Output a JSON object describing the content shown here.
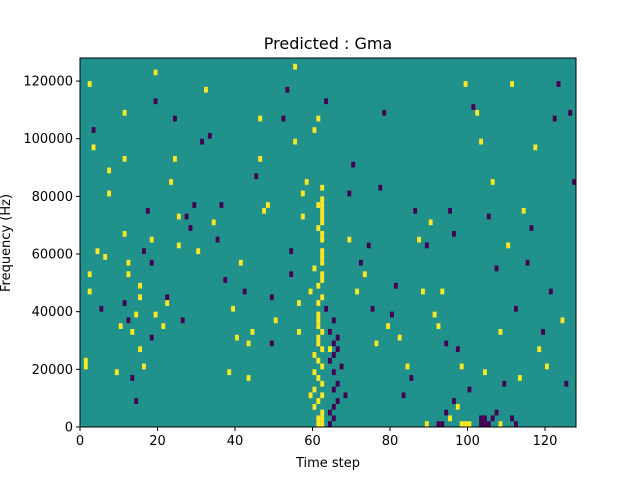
{
  "chart_data": {
    "type": "heatmap",
    "title": "Predicted : Gma",
    "xlabel": "Time step",
    "ylabel": "Frequency (Hz)",
    "xlim": [
      0,
      128
    ],
    "ylim": [
      0,
      128000
    ],
    "x_ticks": [
      0,
      20,
      40,
      60,
      80,
      100,
      120
    ],
    "x_tick_labels": [
      "0",
      "20",
      "40",
      "60",
      "80",
      "100",
      "120"
    ],
    "y_ticks": [
      0,
      20000,
      40000,
      60000,
      80000,
      100000,
      120000
    ],
    "y_tick_labels": [
      "0",
      "20000",
      "40000",
      "60000",
      "80000",
      "100000",
      "120000"
    ],
    "grid": false,
    "cell_height_hz": 2000,
    "background_value": 0,
    "colors": {
      "-1": "#440154",
      "0": "#21918c",
      "1": "#fde725"
    },
    "cells": [
      [
        1,
        21000,
        1
      ],
      [
        1,
        23000,
        1
      ],
      [
        2,
        47000,
        1
      ],
      [
        2,
        53000,
        1
      ],
      [
        2,
        119000,
        1
      ],
      [
        3,
        97000,
        1
      ],
      [
        3,
        103000,
        -1
      ],
      [
        4,
        61000,
        1
      ],
      [
        5,
        41000,
        -1
      ],
      [
        6,
        59000,
        1
      ],
      [
        7,
        81000,
        1
      ],
      [
        7,
        89000,
        1
      ],
      [
        9,
        19000,
        1
      ],
      [
        10,
        35000,
        1
      ],
      [
        11,
        43000,
        -1
      ],
      [
        11,
        67000,
        1
      ],
      [
        11,
        93000,
        1
      ],
      [
        11,
        109000,
        1
      ],
      [
        12,
        37000,
        -1
      ],
      [
        12,
        53000,
        1
      ],
      [
        12,
        57000,
        1
      ],
      [
        13,
        33000,
        1
      ],
      [
        13,
        17000,
        -1
      ],
      [
        14,
        9000,
        -1
      ],
      [
        14,
        39000,
        1
      ],
      [
        15,
        45000,
        1
      ],
      [
        15,
        49000,
        1
      ],
      [
        15,
        27000,
        1
      ],
      [
        16,
        21000,
        1
      ],
      [
        16,
        61000,
        -1
      ],
      [
        17,
        75000,
        -1
      ],
      [
        18,
        65000,
        1
      ],
      [
        18,
        57000,
        -1
      ],
      [
        18,
        31000,
        -1
      ],
      [
        19,
        39000,
        1
      ],
      [
        19,
        113000,
        -1
      ],
      [
        19,
        123000,
        1
      ],
      [
        21,
        35000,
        1
      ],
      [
        22,
        45000,
        -1
      ],
      [
        22,
        43000,
        1
      ],
      [
        23,
        85000,
        1
      ],
      [
        24,
        93000,
        1
      ],
      [
        24,
        107000,
        -1
      ],
      [
        25,
        63000,
        1
      ],
      [
        25,
        73000,
        1
      ],
      [
        26,
        37000,
        -1
      ],
      [
        27,
        73000,
        -1
      ],
      [
        28,
        69000,
        -1
      ],
      [
        29,
        77000,
        -1
      ],
      [
        30,
        61000,
        1
      ],
      [
        31,
        99000,
        -1
      ],
      [
        32,
        117000,
        1
      ],
      [
        33,
        101000,
        -1
      ],
      [
        34,
        71000,
        1
      ],
      [
        35,
        65000,
        -1
      ],
      [
        36,
        77000,
        -1
      ],
      [
        37,
        51000,
        -1
      ],
      [
        38,
        19000,
        1
      ],
      [
        39,
        41000,
        1
      ],
      [
        40,
        31000,
        1
      ],
      [
        41,
        57000,
        1
      ],
      [
        42,
        47000,
        -1
      ],
      [
        43,
        29000,
        1
      ],
      [
        43,
        17000,
        1
      ],
      [
        44,
        33000,
        1
      ],
      [
        45,
        87000,
        -1
      ],
      [
        46,
        93000,
        1
      ],
      [
        46,
        107000,
        1
      ],
      [
        47,
        75000,
        1
      ],
      [
        48,
        77000,
        1
      ],
      [
        49,
        45000,
        -1
      ],
      [
        49,
        29000,
        -1
      ],
      [
        50,
        37000,
        1
      ],
      [
        52,
        107000,
        -1
      ],
      [
        53,
        117000,
        -1
      ],
      [
        54,
        61000,
        -1
      ],
      [
        54,
        53000,
        -1
      ],
      [
        55,
        99000,
        1
      ],
      [
        55,
        125000,
        1
      ],
      [
        56,
        43000,
        1
      ],
      [
        56,
        33000,
        1
      ],
      [
        57,
        81000,
        1
      ],
      [
        57,
        73000,
        1
      ],
      [
        58,
        85000,
        1
      ],
      [
        59,
        11000,
        1
      ],
      [
        59,
        47000,
        1
      ],
      [
        60,
        55000,
        1
      ],
      [
        60,
        103000,
        1
      ],
      [
        61,
        37000,
        1
      ],
      [
        61,
        107000,
        1
      ],
      [
        62,
        77000,
        1
      ],
      [
        62,
        83000,
        1
      ],
      [
        63,
        41000,
        -1
      ],
      [
        63,
        113000,
        -1
      ],
      [
        64,
        27000,
        1
      ],
      [
        65,
        37000,
        -1
      ],
      [
        66,
        31000,
        -1
      ],
      [
        67,
        21000,
        -1
      ],
      [
        68,
        11000,
        -1
      ],
      [
        69,
        81000,
        -1
      ],
      [
        69,
        65000,
        1
      ],
      [
        70,
        91000,
        -1
      ],
      [
        71,
        47000,
        1
      ],
      [
        72,
        57000,
        -1
      ],
      [
        73,
        53000,
        1
      ],
      [
        74,
        63000,
        -1
      ],
      [
        75,
        41000,
        -1
      ],
      [
        76,
        29000,
        1
      ],
      [
        77,
        83000,
        -1
      ],
      [
        78,
        109000,
        -1
      ],
      [
        79,
        35000,
        1
      ],
      [
        80,
        39000,
        -1
      ],
      [
        81,
        49000,
        -1
      ],
      [
        82,
        31000,
        1
      ],
      [
        83,
        11000,
        -1
      ],
      [
        84,
        21000,
        1
      ],
      [
        85,
        17000,
        -1
      ],
      [
        86,
        75000,
        -1
      ],
      [
        87,
        65000,
        1
      ],
      [
        88,
        47000,
        1
      ],
      [
        89,
        63000,
        -1
      ],
      [
        90,
        71000,
        1
      ],
      [
        91,
        39000,
        1
      ],
      [
        92,
        35000,
        1
      ],
      [
        93,
        47000,
        1
      ],
      [
        94,
        29000,
        -1
      ],
      [
        95,
        75000,
        -1
      ],
      [
        96,
        67000,
        -1
      ],
      [
        97,
        27000,
        -1
      ],
      [
        98,
        21000,
        1
      ],
      [
        99,
        119000,
        1
      ],
      [
        100,
        13000,
        -1
      ],
      [
        101,
        111000,
        -1
      ],
      [
        102,
        109000,
        1
      ],
      [
        103,
        99000,
        1
      ],
      [
        104,
        19000,
        1
      ],
      [
        105,
        73000,
        -1
      ],
      [
        106,
        85000,
        1
      ],
      [
        107,
        55000,
        -1
      ],
      [
        108,
        33000,
        1
      ],
      [
        109,
        15000,
        -1
      ],
      [
        110,
        63000,
        1
      ],
      [
        111,
        119000,
        1
      ],
      [
        112,
        41000,
        -1
      ],
      [
        113,
        17000,
        1
      ],
      [
        114,
        75000,
        1
      ],
      [
        115,
        57000,
        -1
      ],
      [
        116,
        69000,
        -1
      ],
      [
        117,
        97000,
        1
      ],
      [
        118,
        27000,
        1
      ],
      [
        119,
        33000,
        -1
      ],
      [
        120,
        21000,
        1
      ],
      [
        121,
        47000,
        -1
      ],
      [
        122,
        107000,
        -1
      ],
      [
        123,
        119000,
        -1
      ],
      [
        124,
        37000,
        1
      ],
      [
        125,
        15000,
        -1
      ],
      [
        126,
        109000,
        -1
      ],
      [
        127,
        85000,
        -1
      ],
      [
        61,
        1000,
        1
      ],
      [
        62,
        1000,
        1
      ],
      [
        61,
        3000,
        1
      ],
      [
        62,
        3000,
        1
      ],
      [
        62,
        5000,
        1
      ],
      [
        60,
        7000,
        1
      ],
      [
        61,
        9000,
        1
      ],
      [
        62,
        11000,
        1
      ],
      [
        60,
        13000,
        1
      ],
      [
        62,
        15000,
        1
      ],
      [
        61,
        17000,
        1
      ],
      [
        60,
        19000,
        1
      ],
      [
        62,
        21000,
        1
      ],
      [
        61,
        23000,
        1
      ],
      [
        60,
        25000,
        1
      ],
      [
        62,
        27000,
        1
      ],
      [
        61,
        29000,
        1
      ],
      [
        61,
        31000,
        1
      ],
      [
        62,
        33000,
        1
      ],
      [
        61,
        35000,
        1
      ],
      [
        61,
        39000,
        1
      ],
      [
        61,
        43000,
        1
      ],
      [
        62,
        45000,
        1
      ],
      [
        61,
        49000,
        1
      ],
      [
        62,
        51000,
        1
      ],
      [
        62,
        53000,
        1
      ],
      [
        62,
        57000,
        1
      ],
      [
        62,
        59000,
        1
      ],
      [
        62,
        61000,
        1
      ],
      [
        62,
        65000,
        1
      ],
      [
        62,
        67000,
        1
      ],
      [
        61,
        69000,
        1
      ],
      [
        62,
        71000,
        1
      ],
      [
        62,
        73000,
        1
      ],
      [
        62,
        75000,
        1
      ],
      [
        61,
        77000,
        1
      ],
      [
        62,
        79000,
        1
      ],
      [
        64,
        1000,
        -1
      ],
      [
        65,
        3000,
        -1
      ],
      [
        64,
        5000,
        -1
      ],
      [
        65,
        7000,
        -1
      ],
      [
        66,
        9000,
        -1
      ],
      [
        65,
        13000,
        -1
      ],
      [
        66,
        15000,
        -1
      ],
      [
        65,
        19000,
        -1
      ],
      [
        64,
        23000,
        -1
      ],
      [
        65,
        25000,
        -1
      ],
      [
        66,
        27000,
        -1
      ],
      [
        65,
        29000,
        -1
      ],
      [
        64,
        33000,
        -1
      ],
      [
        98,
        1000,
        1
      ],
      [
        99,
        1000,
        1
      ],
      [
        100,
        1000,
        1
      ],
      [
        103,
        1000,
        -1
      ],
      [
        104,
        1000,
        -1
      ],
      [
        103,
        3000,
        -1
      ],
      [
        104,
        3000,
        -1
      ],
      [
        105,
        1000,
        -1
      ],
      [
        106,
        3000,
        -1
      ],
      [
        107,
        5000,
        -1
      ],
      [
        108,
        1000,
        1
      ],
      [
        111,
        3000,
        -1
      ],
      [
        112,
        1000,
        -1
      ],
      [
        89,
        1000,
        1
      ],
      [
        92,
        1000,
        -1
      ],
      [
        93,
        1000,
        -1
      ],
      [
        95,
        3000,
        1
      ],
      [
        94,
        5000,
        -1
      ],
      [
        97,
        7000,
        1
      ],
      [
        96,
        9000,
        -1
      ]
    ]
  }
}
